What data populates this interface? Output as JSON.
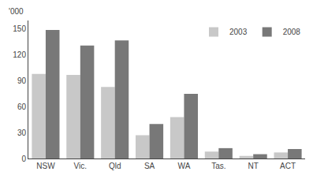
{
  "chart_data": {
    "type": "bar",
    "categories": [
      "NSW",
      "Vic.",
      "Qld",
      "SA",
      "WA",
      "Tas.",
      "NT",
      "ACT"
    ],
    "series": [
      {
        "name": "2003",
        "color": "#c8c8c8",
        "values": [
          98,
          97,
          83,
          27,
          48,
          8,
          3,
          7
        ]
      },
      {
        "name": "2008",
        "color": "#787878",
        "values": [
          149,
          131,
          137,
          40,
          75,
          12,
          5,
          11
        ]
      }
    ],
    "ylabel": "'000",
    "ylim": [
      0,
      160
    ],
    "yticks": [
      0,
      30,
      60,
      90,
      120,
      150
    ],
    "grid": false,
    "legend": "upper right"
  }
}
